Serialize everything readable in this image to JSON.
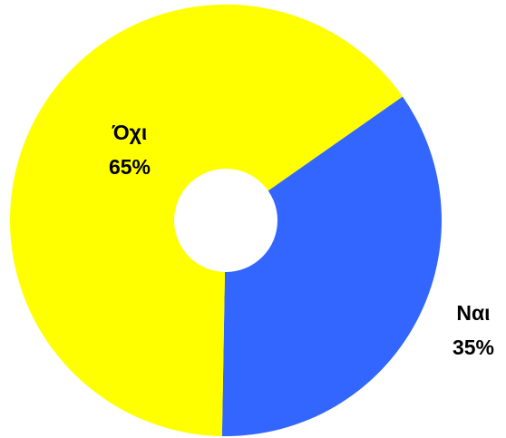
{
  "chart_data": {
    "type": "pie",
    "style": "donut",
    "slices": [
      {
        "label": "Ναι",
        "value": 35,
        "value_label": "35%",
        "color": "#3366FF"
      },
      {
        "label": "Όχι",
        "value": 65,
        "value_label": "65%",
        "color": "#FFFF00"
      }
    ],
    "legend": "none"
  }
}
